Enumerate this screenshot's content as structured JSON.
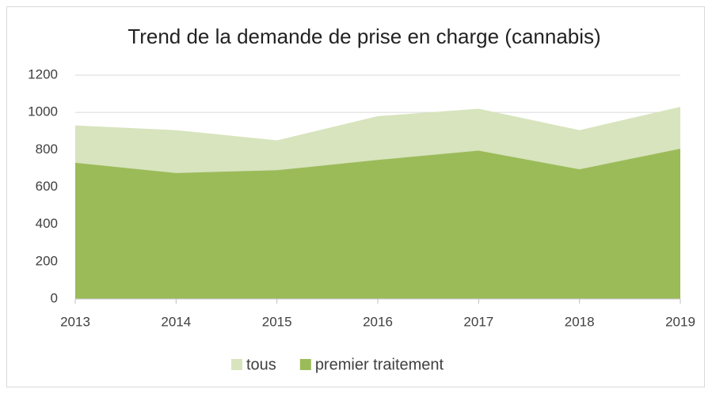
{
  "chart_data": {
    "type": "area",
    "title": "Trend de la demande de prise en charge (cannabis)",
    "categories": [
      "2013",
      "2014",
      "2015",
      "2016",
      "2017",
      "2018",
      "2019"
    ],
    "series": [
      {
        "name": "tous",
        "color": "#d7e4bd",
        "values": [
          930,
          905,
          850,
          980,
          1020,
          905,
          1030
        ]
      },
      {
        "name": "premier traitement",
        "color": "#9bbb59",
        "values": [
          730,
          675,
          690,
          745,
          795,
          695,
          805
        ]
      }
    ],
    "ylim": [
      0,
      1200
    ],
    "yticks": [
      0,
      200,
      400,
      600,
      800,
      1000,
      1200
    ],
    "grid": true,
    "legend": "bottom"
  }
}
